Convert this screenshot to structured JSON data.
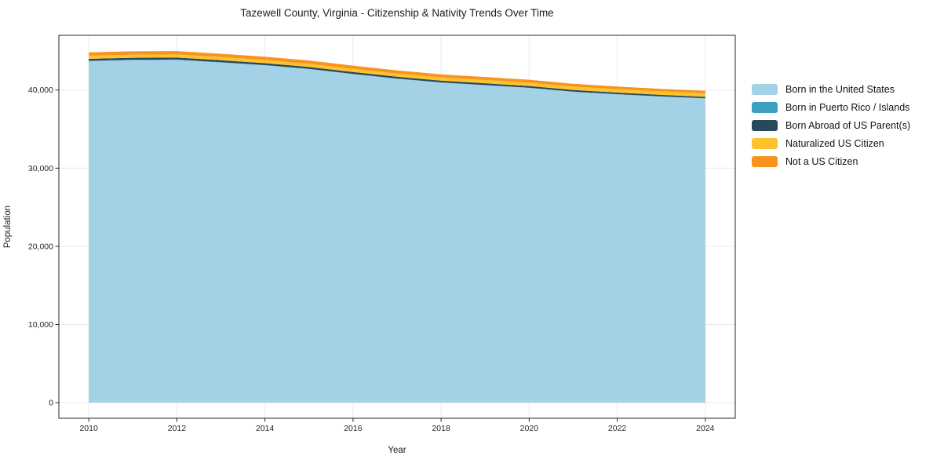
{
  "chart_data": {
    "type": "area",
    "stacked": true,
    "title": "Tazewell County, Virginia - Citizenship & Nativity Trends Over Time",
    "xlabel": "Year",
    "ylabel": "Population",
    "x": [
      2010,
      2011,
      2012,
      2013,
      2014,
      2015,
      2016,
      2017,
      2018,
      2019,
      2020,
      2021,
      2022,
      2023,
      2024
    ],
    "series": [
      {
        "name": "Born in the United States",
        "color": "#a3d1e6",
        "values": [
          43700,
          43830,
          43860,
          43520,
          43160,
          42680,
          42040,
          41440,
          40950,
          40610,
          40270,
          39770,
          39440,
          39160,
          38920
        ]
      },
      {
        "name": "Born in Puerto Rico / Islands",
        "color": "#3ba0bf",
        "values": [
          40,
          40,
          40,
          40,
          40,
          30,
          30,
          30,
          30,
          30,
          30,
          30,
          30,
          30,
          30
        ]
      },
      {
        "name": "Born Abroad of US Parent(s)",
        "color": "#29485c",
        "values": [
          250,
          250,
          250,
          250,
          240,
          240,
          230,
          230,
          220,
          220,
          210,
          210,
          200,
          190,
          180
        ]
      },
      {
        "name": "Naturalized US Citizen",
        "color": "#fcc32d",
        "values": [
          400,
          400,
          400,
          400,
          400,
          400,
          410,
          410,
          420,
          420,
          430,
          430,
          430,
          440,
          450
        ]
      },
      {
        "name": "Not a US Citizen",
        "color": "#f8941d",
        "values": [
          430,
          430,
          430,
          430,
          430,
          420,
          410,
          400,
          390,
          380,
          370,
          360,
          350,
          330,
          320
        ]
      }
    ],
    "xlim": [
      2009.32,
      2024.68
    ],
    "ylim": [
      -2000,
      47000
    ],
    "xticks": [
      2010,
      2012,
      2014,
      2016,
      2018,
      2020,
      2022,
      2024
    ],
    "yticks": [
      0,
      10000,
      20000,
      30000,
      40000
    ],
    "ytick_labels": [
      "0",
      "10,000",
      "20,000",
      "30,000",
      "40,000"
    ],
    "grid": true,
    "legend_position": "right",
    "colors": {
      "grid_line": "#e9e9e9",
      "axis_line": "#262626",
      "tick_label": "#262626",
      "background": "#ffffff"
    }
  }
}
